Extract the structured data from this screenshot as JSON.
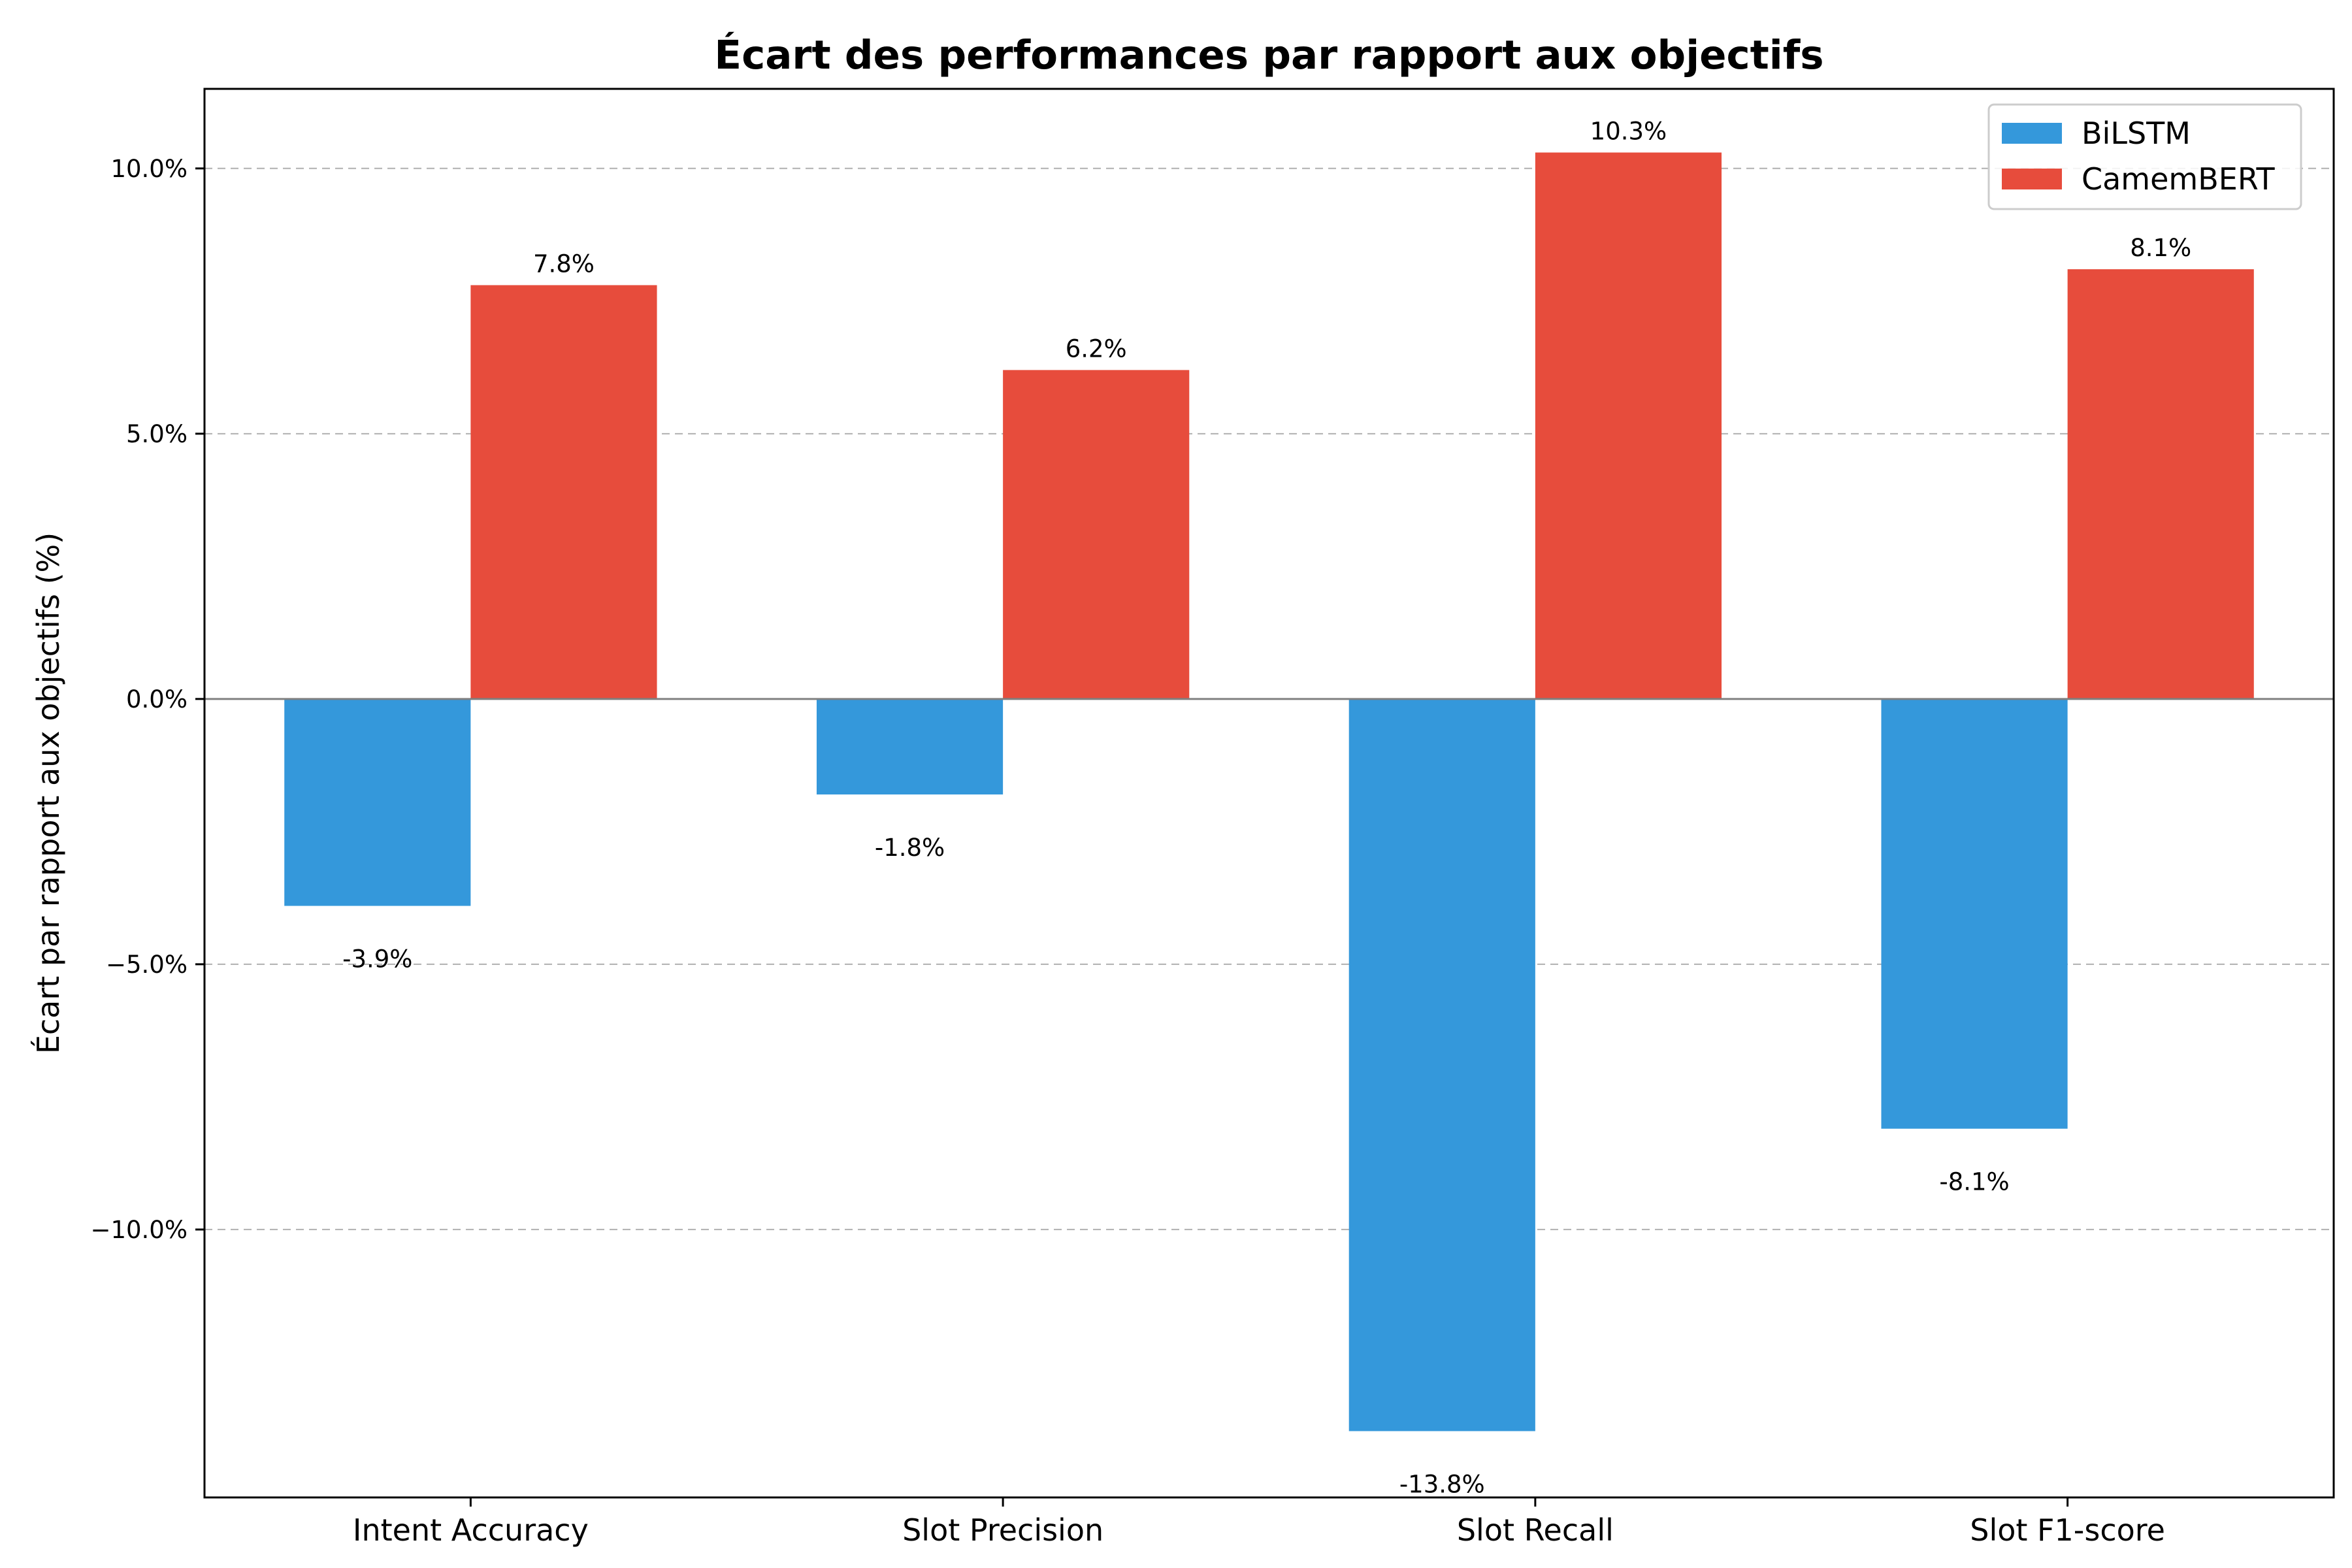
{
  "chart_data": {
    "type": "bar",
    "title": "Écart des performances par rapport aux objectifs",
    "xlabel": "",
    "ylabel": "Écart par rapport aux objectifs (%)",
    "categories": [
      "Intent Accuracy",
      "Slot Precision",
      "Slot Recall",
      "Slot F1-score"
    ],
    "series": [
      {
        "name": "BiLSTM",
        "color": "#3498db",
        "values": [
          -3.9,
          -1.8,
          -13.8,
          -8.1
        ],
        "labels": [
          "-3.9%",
          "-1.8%",
          "-13.8%",
          "-8.1%"
        ]
      },
      {
        "name": "CamemBERT",
        "color": "#e74c3c",
        "values": [
          7.8,
          6.2,
          10.3,
          8.1
        ],
        "labels": [
          "7.8%",
          "6.2%",
          "10.3%",
          "8.1%"
        ]
      }
    ],
    "ylim": [
      -15.05,
      11.5
    ],
    "yticks": [
      -10,
      -5,
      0,
      5,
      10
    ],
    "ytick_labels": [
      "−10.0%",
      "−5.0%",
      "0.0%",
      "5.0%",
      "10.0%"
    ],
    "grid": "y-dashed",
    "legend": "top-right"
  }
}
